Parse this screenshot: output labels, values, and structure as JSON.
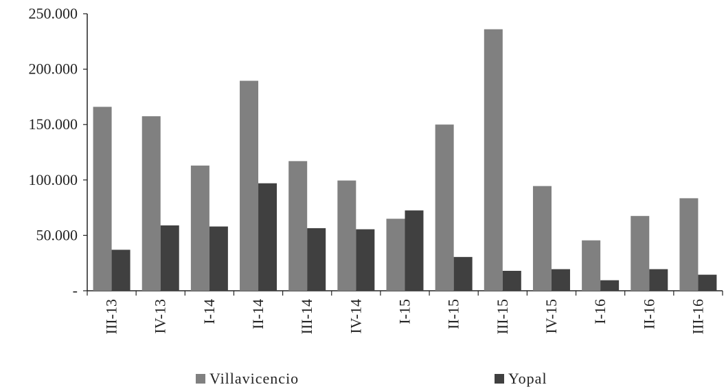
{
  "chart_data": {
    "type": "bar",
    "categories": [
      "III-13",
      "IV-13",
      "I-14",
      "II-14",
      "III-14",
      "IV-14",
      "I-15",
      "II-15",
      "III-15",
      "IV-15",
      "I-16",
      "II-16",
      "III-16"
    ],
    "series": [
      {
        "name": "Villavicencio",
        "color": "#808080",
        "values": [
          166000,
          157500,
          113000,
          189500,
          117000,
          99500,
          65000,
          150000,
          236000,
          94500,
          45500,
          67500,
          83500
        ]
      },
      {
        "name": "Yopal",
        "color": "#404040",
        "values": [
          37000,
          59000,
          58000,
          97000,
          56500,
          55500,
          72500,
          30500,
          18000,
          19500,
          9500,
          19500,
          14500
        ]
      }
    ],
    "y_ticks": [
      "-",
      "50.000",
      "100.000",
      "150.000",
      "200.000",
      "250.000"
    ],
    "ylim": [
      0,
      250000
    ],
    "grid": false,
    "legend_position": "bottom"
  }
}
